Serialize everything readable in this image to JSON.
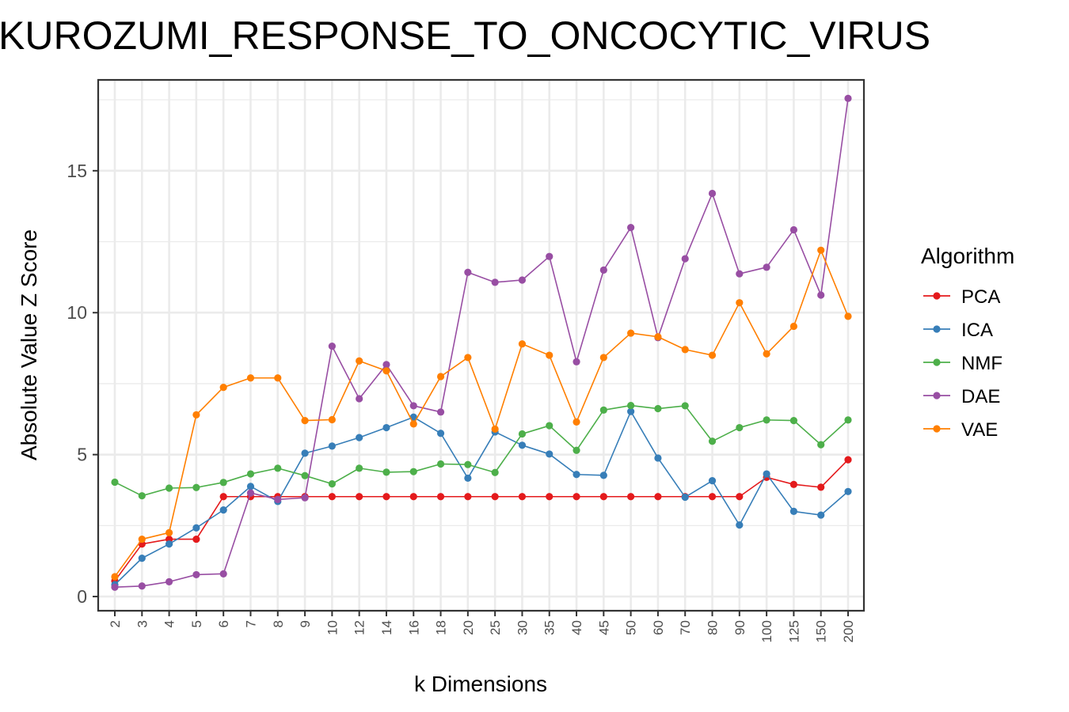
{
  "chart_data": {
    "type": "line",
    "title": "KUROZUMI_RESPONSE_TO_ONCOCYTIC_VIRUS",
    "xlabel": "k Dimensions",
    "ylabel": "Absolute Value Z Score",
    "categories": [
      "2",
      "3",
      "4",
      "5",
      "6",
      "7",
      "8",
      "9",
      "10",
      "12",
      "14",
      "16",
      "18",
      "20",
      "25",
      "30",
      "35",
      "40",
      "45",
      "50",
      "60",
      "70",
      "80",
      "90",
      "100",
      "125",
      "150",
      "200"
    ],
    "yticks": [
      0,
      5,
      10,
      15
    ],
    "ylim": [
      -0.5,
      18.2
    ],
    "grid": true,
    "legend": {
      "title": "Algorithm",
      "position": "right"
    },
    "series": [
      {
        "name": "PCA",
        "color": "#e41a1c",
        "values": [
          0.55,
          1.85,
          2.02,
          2.02,
          3.52,
          3.52,
          3.52,
          3.52,
          3.52,
          3.52,
          3.52,
          3.52,
          3.52,
          3.52,
          3.52,
          3.52,
          3.52,
          3.52,
          3.52,
          3.52,
          3.52,
          3.52,
          3.52,
          3.52,
          4.2,
          3.95,
          3.85,
          4.82
        ]
      },
      {
        "name": "ICA",
        "color": "#377eb8",
        "values": [
          0.42,
          1.35,
          1.85,
          2.42,
          3.05,
          3.88,
          3.35,
          5.05,
          5.3,
          5.6,
          5.95,
          6.32,
          5.75,
          4.17,
          5.8,
          5.33,
          5.02,
          4.3,
          4.27,
          6.52,
          4.88,
          3.5,
          4.08,
          2.52,
          4.32,
          3.0,
          2.87,
          3.7
        ]
      },
      {
        "name": "NMF",
        "color": "#4daf4a",
        "values": [
          4.03,
          3.55,
          3.82,
          3.84,
          4.02,
          4.32,
          4.52,
          4.26,
          3.97,
          4.52,
          4.38,
          4.4,
          4.67,
          4.65,
          4.37,
          5.73,
          6.02,
          5.15,
          6.57,
          6.73,
          6.62,
          6.72,
          5.47,
          5.95,
          6.22,
          6.2,
          5.35,
          6.22
        ]
      },
      {
        "name": "DAE",
        "color": "#984ea3",
        "values": [
          0.33,
          0.37,
          0.52,
          0.77,
          0.8,
          3.65,
          3.42,
          3.48,
          8.82,
          6.97,
          8.17,
          6.72,
          6.5,
          11.42,
          11.07,
          11.15,
          11.98,
          8.27,
          11.5,
          13.0,
          9.12,
          11.9,
          14.2,
          11.37,
          11.6,
          12.92,
          10.62,
          17.55
        ]
      },
      {
        "name": "VAE",
        "color": "#ff7f00",
        "values": [
          0.7,
          2.02,
          2.25,
          6.4,
          7.37,
          7.7,
          7.7,
          6.2,
          6.23,
          8.3,
          7.95,
          6.08,
          7.75,
          8.42,
          5.9,
          8.9,
          8.5,
          6.15,
          8.42,
          9.28,
          9.15,
          8.7,
          8.5,
          10.35,
          8.55,
          9.52,
          12.2,
          9.87
        ]
      }
    ]
  }
}
